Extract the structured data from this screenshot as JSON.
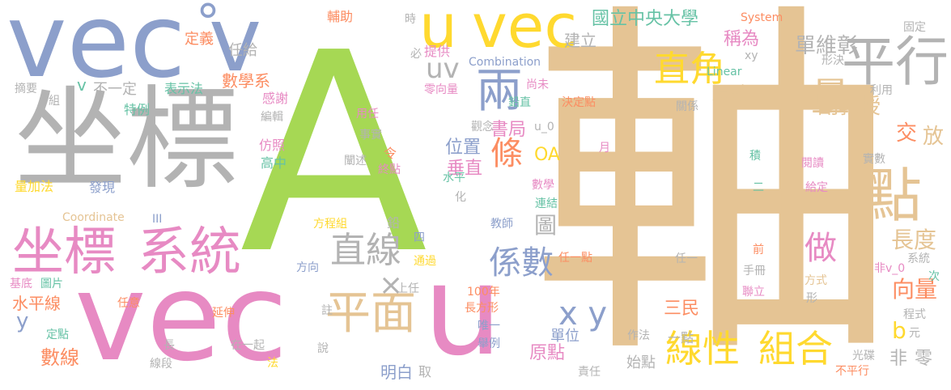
{
  "palette": {
    "blue": "#8c9fcb",
    "green": "#a6d854",
    "pink": "#e78ac3",
    "tan": "#e5c494",
    "gray": "#b3b3b3",
    "yellow": "#ffd92f",
    "orange": "#fc8d62",
    "teal": "#66c2a5"
  },
  "words": [
    {
      "text": "軸",
      "color": "tan"
    },
    {
      "text": "A",
      "color": "green"
    },
    {
      "text": "vec",
      "color": "blue"
    },
    {
      "text": "v",
      "color": "blue"
    },
    {
      "text": "°",
      "color": "blue"
    },
    {
      "text": "坐標",
      "color": "gray"
    },
    {
      "text": "vec",
      "color": "pink"
    },
    {
      "text": "u",
      "color": "pink"
    },
    {
      "text": "坐標",
      "color": "pink"
    },
    {
      "text": "系統",
      "color": "pink"
    },
    {
      "text": "u",
      "color": "yellow"
    },
    {
      "text": "vec",
      "color": "yellow"
    },
    {
      "text": "兩",
      "color": "blue"
    },
    {
      "text": "平行",
      "color": "gray"
    },
    {
      "text": "直角",
      "color": "yellow"
    },
    {
      "text": "量",
      "color": "tan"
    },
    {
      "text": "點",
      "color": "tan"
    },
    {
      "text": "平面",
      "color": "tan"
    },
    {
      "text": "直線",
      "color": "gray"
    },
    {
      "text": "線性",
      "color": "yellow"
    },
    {
      "text": "組合",
      "color": "yellow"
    },
    {
      "text": "條",
      "color": "orange"
    },
    {
      "text": "做",
      "color": "pink"
    },
    {
      "text": "係數",
      "color": "blue"
    },
    {
      "text": "x y",
      "color": "blue"
    },
    {
      "text": "×",
      "color": "gray"
    },
    {
      "text": "uv",
      "color": "gray"
    },
    {
      "text": "單維彰",
      "color": "gray"
    },
    {
      "text": "副教授",
      "color": "tan"
    },
    {
      "text": "國立中央大學",
      "color": "teal"
    },
    {
      "text": "長度",
      "color": "tan"
    },
    {
      "text": "向量",
      "color": "orange"
    },
    {
      "text": "交",
      "color": "orange"
    },
    {
      "text": "放",
      "color": "tan"
    },
    {
      "text": "稱為",
      "color": "pink"
    },
    {
      "text": "過點",
      "color": "tan"
    },
    {
      "text": "書局",
      "color": "pink"
    },
    {
      "text": "位置",
      "color": "blue"
    },
    {
      "text": "垂直",
      "color": "pink"
    },
    {
      "text": "圖",
      "color": "gray"
    },
    {
      "text": "OA",
      "color": "yellow"
    },
    {
      "text": "b",
      "color": "yellow"
    },
    {
      "text": "元",
      "color": "gray"
    },
    {
      "text": "非",
      "color": "gray"
    },
    {
      "text": "零",
      "color": "gray"
    },
    {
      "text": "原點",
      "color": "pink"
    },
    {
      "text": "單位",
      "color": "blue"
    },
    {
      "text": "三民",
      "color": "orange"
    },
    {
      "text": "數線",
      "color": "orange"
    },
    {
      "text": "水平線",
      "color": "orange"
    },
    {
      "text": "數學系",
      "color": "orange"
    },
    {
      "text": "任給",
      "color": "gray"
    },
    {
      "text": "定義",
      "color": "orange"
    },
    {
      "text": "v",
      "color": "teal"
    },
    {
      "text": "不一定",
      "color": "gray"
    },
    {
      "text": "y",
      "color": "blue"
    },
    {
      "text": "明白",
      "color": "blue"
    },
    {
      "text": "取",
      "color": "gray"
    },
    {
      "text": "始點",
      "color": "gray"
    },
    {
      "text": "一點",
      "color": "gray"
    },
    {
      "text": "作法",
      "color": "gray"
    },
    {
      "text": "責任",
      "color": "gray"
    },
    {
      "text": "建立",
      "color": "gray"
    },
    {
      "text": "輔助",
      "color": "orange"
    },
    {
      "text": "時",
      "color": "gray"
    },
    {
      "text": "提供",
      "color": "pink"
    },
    {
      "text": "必",
      "color": "gray"
    },
    {
      "text": "Combination",
      "color": "blue"
    },
    {
      "text": "System",
      "color": "orange"
    },
    {
      "text": "固定",
      "color": "gray"
    },
    {
      "text": "xy",
      "color": "gray"
    },
    {
      "text": "形決",
      "color": "gray"
    },
    {
      "text": "Linear",
      "color": "teal"
    },
    {
      "text": "利用",
      "color": "gray"
    },
    {
      "text": "關係",
      "color": "gray"
    },
    {
      "text": "摘要",
      "color": "gray"
    },
    {
      "text": "組",
      "color": "gray"
    },
    {
      "text": "表示法",
      "color": "teal"
    },
    {
      "text": "感謝",
      "color": "pink"
    },
    {
      "text": "特例",
      "color": "teal"
    },
    {
      "text": "編輯",
      "color": "gray"
    },
    {
      "text": "仿照",
      "color": "pink"
    },
    {
      "text": "高中",
      "color": "teal"
    },
    {
      "text": "量加法",
      "color": "yellow"
    },
    {
      "text": "發現",
      "color": "blue"
    },
    {
      "text": "Coordinate",
      "color": "tan"
    },
    {
      "text": "III",
      "color": "blue"
    },
    {
      "text": "基底",
      "color": "pink"
    },
    {
      "text": "圖片",
      "color": "teal"
    },
    {
      "text": "任意",
      "color": "orange"
    },
    {
      "text": "定點",
      "color": "teal"
    },
    {
      "text": "延伸",
      "color": "orange"
    },
    {
      "text": "長",
      "color": "gray"
    },
    {
      "text": "線段",
      "color": "gray"
    },
    {
      "text": "在一起",
      "color": "gray"
    },
    {
      "text": "法",
      "color": "yellow"
    },
    {
      "text": "說",
      "color": "gray"
    },
    {
      "text": "方向",
      "color": "blue"
    },
    {
      "text": "通過",
      "color": "yellow"
    },
    {
      "text": "四",
      "color": "blue"
    },
    {
      "text": "方程組",
      "color": "yellow"
    },
    {
      "text": "鉛",
      "color": "gray"
    },
    {
      "text": "上任",
      "color": "gray"
    },
    {
      "text": "註",
      "color": "gray"
    },
    {
      "text": "用任",
      "color": "pink"
    },
    {
      "text": "事實",
      "color": "gray"
    },
    {
      "text": "闡述",
      "color": "gray"
    },
    {
      "text": "令",
      "color": "orange"
    },
    {
      "text": "終點",
      "color": "pink"
    },
    {
      "text": "零向量",
      "color": "pink"
    },
    {
      "text": "尚未",
      "color": "pink"
    },
    {
      "text": "鉛直",
      "color": "teal"
    },
    {
      "text": "決定點",
      "color": "orange"
    },
    {
      "text": "觀念",
      "color": "gray"
    },
    {
      "text": "u_0",
      "color": "gray"
    },
    {
      "text": "水平",
      "color": "teal"
    },
    {
      "text": "化",
      "color": "gray"
    },
    {
      "text": "數學",
      "color": "pink"
    },
    {
      "text": "連結",
      "color": "teal"
    },
    {
      "text": "教師",
      "color": "blue"
    },
    {
      "text": "月",
      "color": "pink"
    },
    {
      "text": "100年",
      "color": "orange"
    },
    {
      "text": "長方形",
      "color": "orange"
    },
    {
      "text": "唯一",
      "color": "blue"
    },
    {
      "text": "舉例",
      "color": "blue"
    },
    {
      "text": "任一點",
      "color": "orange"
    },
    {
      "text": "任一",
      "color": "gray"
    },
    {
      "text": "積",
      "color": "teal"
    },
    {
      "text": "二",
      "color": "teal"
    },
    {
      "text": "閱讀",
      "color": "pink"
    },
    {
      "text": "給定",
      "color": "pink"
    },
    {
      "text": "實數",
      "color": "gray"
    },
    {
      "text": "前",
      "color": "orange"
    },
    {
      "text": "手冊",
      "color": "gray"
    },
    {
      "text": "聯立",
      "color": "pink"
    },
    {
      "text": "方式",
      "color": "tan"
    },
    {
      "text": "形",
      "color": "gray"
    },
    {
      "text": "非v_0",
      "color": "pink"
    },
    {
      "text": "系統",
      "color": "gray"
    },
    {
      "text": "次",
      "color": "teal"
    },
    {
      "text": "程式",
      "color": "gray"
    },
    {
      "text": "光碟",
      "color": "gray"
    },
    {
      "text": "不平行",
      "color": "orange"
    }
  ]
}
